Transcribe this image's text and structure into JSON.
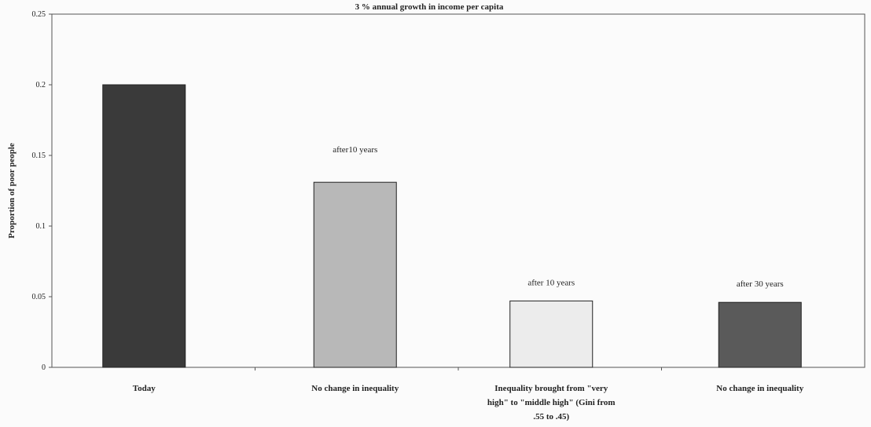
{
  "chart_data": {
    "type": "bar",
    "title": "3 % annual growth in income per capita",
    "ylabel": "Proportion of poor people",
    "xlabel": "",
    "ylim": [
      0,
      0.25
    ],
    "yticks": [
      {
        "value": 0,
        "label": "0"
      },
      {
        "value": 0.05,
        "label": "0.05"
      },
      {
        "value": 0.1,
        "label": "0.1"
      },
      {
        "value": 0.15,
        "label": "0.15"
      },
      {
        "value": 0.2,
        "label": "0.2"
      },
      {
        "value": 0.25,
        "label": "0.25"
      }
    ],
    "grid": false,
    "legend": "none",
    "categories": [
      "Today",
      "No change in inequality",
      "Inequality brought from \"very high\" to \"middle high\" (Gini from .55 to .45)",
      "No change in inequality"
    ],
    "category_lines": [
      [
        "Today"
      ],
      [
        "No change in inequality"
      ],
      [
        "Inequality brought from  \"very",
        "high\" to  \"middle high\"  (Gini from",
        ".55 to .45)"
      ],
      [
        "No change in inequality"
      ]
    ],
    "values": [
      0.2,
      0.131,
      0.047,
      0.046
    ],
    "annotations": [
      "",
      "after10 years",
      "after 10 years",
      "after 30 years"
    ],
    "bar_colors": [
      "#3a3a3a",
      "#b8b8b8",
      "#ececec",
      "#5a5a5a"
    ]
  }
}
